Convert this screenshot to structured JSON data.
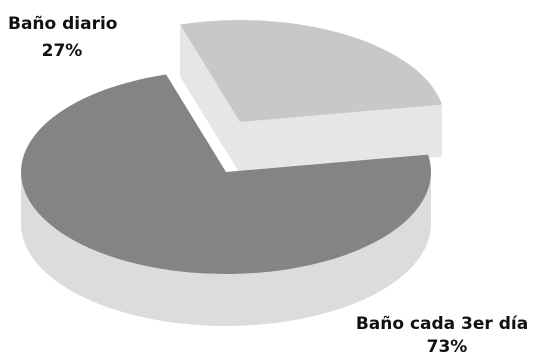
{
  "chart_data": {
    "type": "pie",
    "title": "",
    "style": "3d-exploded",
    "slices": [
      {
        "label": "Baño diario",
        "value": 27,
        "value_label": "27%",
        "color": "#c8c8c8",
        "side_color": "#e6e6e6",
        "exploded": true
      },
      {
        "label": "Baño cada 3er día",
        "value": 73,
        "value_label": "73%",
        "color": "#848484",
        "side_color": "#dcdcdc",
        "exploded": false
      }
    ]
  }
}
